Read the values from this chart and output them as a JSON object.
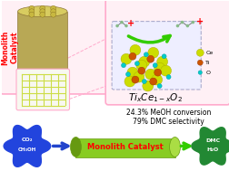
{
  "bg_color": "#ffffff",
  "stat1": "24.3% MeOH conversion",
  "stat2": "79% DMC selectivity",
  "monolith_catalyst_label": "Monolith Catalyst",
  "left_label": "Monolith\nCatalyst",
  "reactant1": "CO₂",
  "reactant2": "CH₃OH",
  "product1": "DMC",
  "product2": "H₂O",
  "legend_ce": "Ce",
  "legend_ti": "Ti",
  "legend_o": "O",
  "ce_color": "#ccdd00",
  "ti_color": "#cc5500",
  "o_color": "#00cccc",
  "arrow_green": "#33cc00",
  "pink_box": "#ffaacc",
  "pink_fill": "#fff0f5",
  "blue_blob": "#2244dd",
  "green_blob": "#228833",
  "green_catalyst": "#88cc22",
  "green_catalyst_dark": "#669911",
  "green_catalyst_light": "#aadd44",
  "grid_color": "#ccdd44",
  "cyl_body": "#b8a855",
  "cyl_top": "#d4c870",
  "cyl_dark": "#907838"
}
